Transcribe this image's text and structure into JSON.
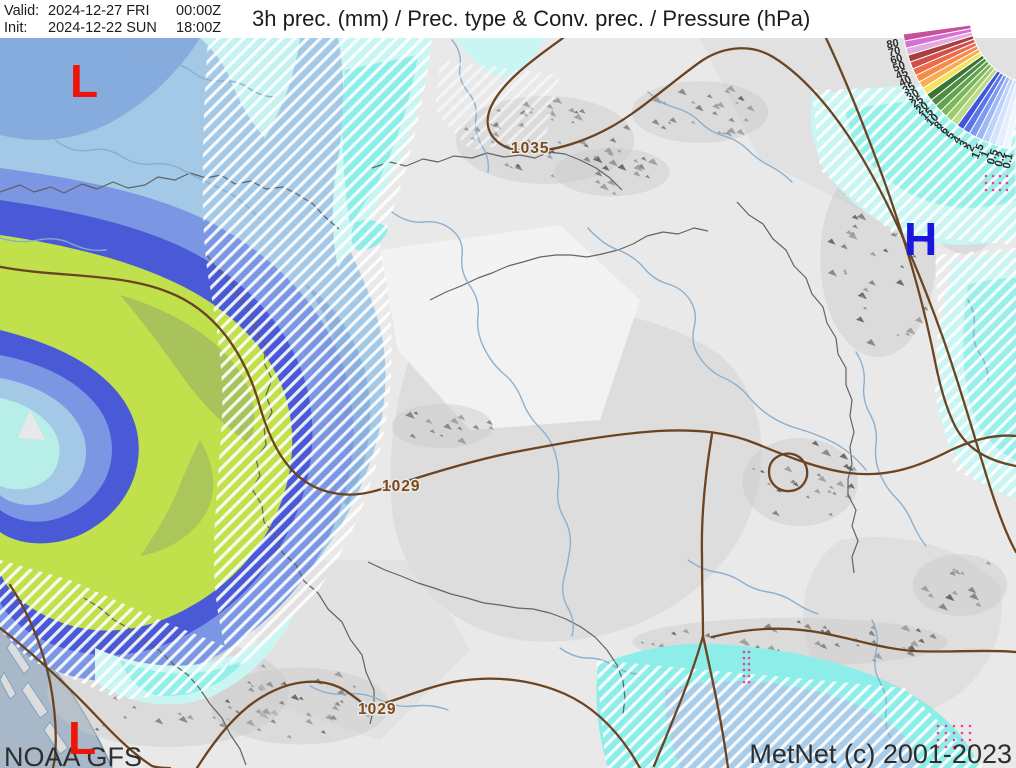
{
  "header": {
    "valid": {
      "label": "Valid:",
      "date": "2024-12-27 FRI",
      "time": "00:00Z"
    },
    "init": {
      "label": "Init:",
      "date": "2024-12-22 SUN",
      "time": "18:00Z"
    },
    "title": "3h prec. (mm) / Prec. type & Conv. prec. / Pressure (hPa)"
  },
  "legend": {
    "unit": "mm",
    "values": [
      "80",
      "70",
      "60",
      "50",
      "45",
      "40",
      "35",
      "30",
      "25",
      "20",
      "15",
      "10",
      "8",
      "6",
      "5",
      "4",
      "3",
      "2",
      "1.5",
      "1",
      "0.5",
      "0.2",
      "0.1"
    ],
    "colors": [
      "#c94f9b",
      "#d76fd7",
      "#e3aade",
      "#a83f3f",
      "#d14f4f",
      "#ec6b49",
      "#f58b46",
      "#f9ad52",
      "#f7e35b",
      "#3a7334",
      "#4f8c41",
      "#63a24e",
      "#7cb75c",
      "#9ecb6f",
      "#bcdc85",
      "#4156dd",
      "#5b76e7",
      "#7d9af0",
      "#9fb9f5",
      "#bdd2f9",
      "#d4e3fb",
      "#e4eefd",
      "#f0f6fe"
    ]
  },
  "map": {
    "isobar_labels": [
      {
        "text": "1035"
      },
      {
        "text": "1029"
      },
      {
        "text": "1029"
      }
    ],
    "markers": [
      {
        "text": "L",
        "type": "low"
      },
      {
        "text": "L",
        "type": "low"
      },
      {
        "text": "H",
        "type": "high"
      }
    ],
    "credit_left": "NOAA GFS",
    "credit_right": "MetNet (c) 2001-2023"
  },
  "palette": {
    "header_text": "#1c1c1c",
    "precip_light_blue": "#a3c9e6",
    "precip_blue_patch": "#86abdd",
    "precip_cornflower": "#7b97e4",
    "precip_royal": "#4a5ad6",
    "precip_green": "#c0e14b",
    "precip_olive": "#a5bf5e",
    "precip_cyan": "#8deee9",
    "precip_pale_cyan": "#c9f5f2",
    "precip_inner_blue": "#a9cce8",
    "isobar_brown": "#6b4422",
    "label_brown": "#7b4a19",
    "low_red": "#ee1408",
    "high_blue": "#1a16e0",
    "sea": "#a9b8c8",
    "river": "#87aecf",
    "border": "#5d5d5d",
    "credit_gray": "#2e2e2e",
    "dots_pink": "#f03ca0"
  }
}
